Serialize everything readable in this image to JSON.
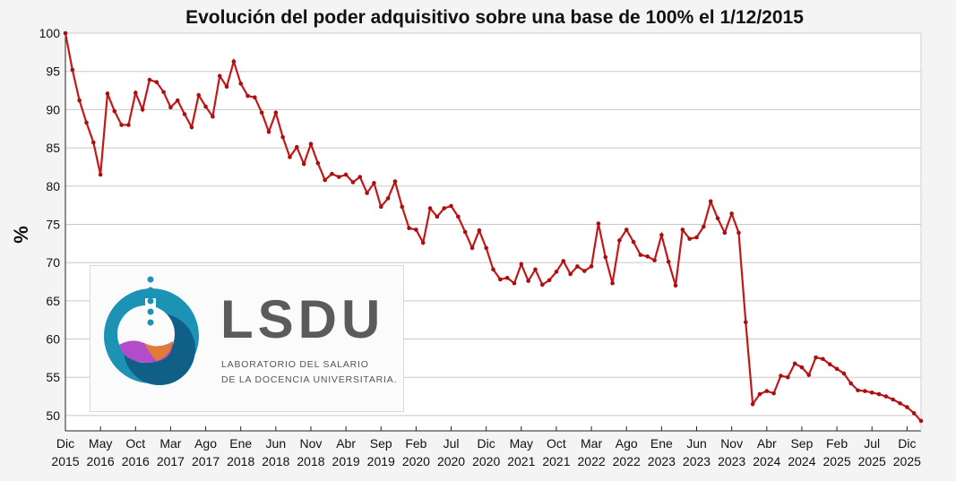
{
  "chart_data": {
    "type": "line",
    "title": "Evolución del poder adquisitivo sobre una base de 100% el 1/12/2015",
    "xlabel": "",
    "ylabel": "%",
    "ylim": [
      48,
      100
    ],
    "yticks": [
      50,
      55,
      60,
      65,
      70,
      75,
      80,
      85,
      90,
      95,
      100
    ],
    "grid": true,
    "xtick_labels": [
      {
        "index": 0,
        "month": "Dic",
        "year": "2015"
      },
      {
        "index": 5,
        "month": "May",
        "year": "2016"
      },
      {
        "index": 10,
        "month": "Oct",
        "year": "2016"
      },
      {
        "index": 15,
        "month": "Mar",
        "year": "2017"
      },
      {
        "index": 20,
        "month": "Ago",
        "year": "2017"
      },
      {
        "index": 25,
        "month": "Ene",
        "year": "2018"
      },
      {
        "index": 30,
        "month": "Jun",
        "year": "2018"
      },
      {
        "index": 35,
        "month": "Nov",
        "year": "2018"
      },
      {
        "index": 40,
        "month": "Abr",
        "year": "2019"
      },
      {
        "index": 45,
        "month": "Sep",
        "year": "2019"
      },
      {
        "index": 50,
        "month": "Feb",
        "year": "2020"
      },
      {
        "index": 55,
        "month": "Jul",
        "year": "2020"
      },
      {
        "index": 60,
        "month": "Dic",
        "year": "2020"
      },
      {
        "index": 65,
        "month": "May",
        "year": "2021"
      },
      {
        "index": 70,
        "month": "Oct",
        "year": "2021"
      },
      {
        "index": 75,
        "month": "Mar",
        "year": "2022"
      },
      {
        "index": 80,
        "month": "Ago",
        "year": "2022"
      },
      {
        "index": 85,
        "month": "Ene",
        "year": "2023"
      },
      {
        "index": 90,
        "month": "Jun",
        "year": "2023"
      },
      {
        "index": 95,
        "month": "Nov",
        "year": "2023"
      },
      {
        "index": 100,
        "month": "Abr",
        "year": "2024"
      },
      {
        "index": 105,
        "month": "Sep",
        "year": "2024"
      },
      {
        "index": 110,
        "month": "Feb",
        "year": "2025"
      },
      {
        "index": 115,
        "month": "Jul",
        "year": "2025"
      },
      {
        "index": 120,
        "month": "Dic",
        "year": "2025"
      }
    ],
    "series": [
      {
        "name": "Poder adquisitivo",
        "color": "#c41818",
        "values": [
          100,
          95.2,
          91.2,
          88.3,
          85.7,
          81.5,
          92.1,
          89.8,
          88,
          88,
          92.2,
          90,
          93.9,
          93.6,
          92.3,
          90.3,
          91.2,
          89.4,
          87.7,
          91.9,
          90.4,
          89.1,
          94.4,
          93,
          96.3,
          93.4,
          91.8,
          91.6,
          89.6,
          87.1,
          89.6,
          86.4,
          83.8,
          85.1,
          82.9,
          85.5,
          83,
          80.8,
          81.6,
          81.2,
          81.5,
          80.5,
          81.2,
          79.1,
          80.4,
          77.3,
          78.4,
          80.6,
          77.3,
          74.5,
          74.3,
          72.6,
          77.1,
          76,
          77.1,
          77.4,
          76,
          74,
          71.9,
          74.2,
          71.9,
          69.1,
          67.8,
          68,
          67.3,
          69.8,
          67.6,
          69.1,
          67.1,
          67.7,
          68.8,
          70.2,
          68.5,
          69.5,
          68.9,
          69.5,
          75.1,
          70.7,
          67.3,
          72.9,
          74.3,
          72.7,
          71,
          70.8,
          70.3,
          73.6,
          70.1,
          67,
          74.3,
          73.1,
          73.3,
          74.7,
          78,
          75.8,
          73.9,
          76.4,
          73.9,
          62.2,
          51.5,
          52.8,
          53.2,
          52.9,
          55.2,
          55,
          56.8,
          56.3,
          55.3,
          57.6,
          57.4,
          56.7,
          56.1,
          55.5,
          54.2,
          53.3,
          53.2,
          53,
          52.8,
          52.5,
          52.1,
          51.6,
          51.1,
          50.3,
          49.3
        ]
      }
    ]
  },
  "logo": {
    "name": "LSDU",
    "line1": "LABORATORIO DEL SALARIO",
    "line2": "DE LA DOCENCIA UNIVERSITARIA."
  },
  "colors": {
    "series": "#c41818",
    "logo_teal": "#1c92b5",
    "logo_dark": "#0f5f86",
    "logo_text": "#5b5b5b"
  }
}
